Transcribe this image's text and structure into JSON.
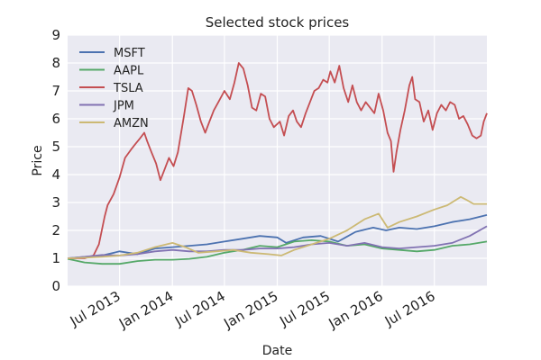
{
  "chart_data": {
    "type": "line",
    "title": "Selected stock prices",
    "xlabel": "Date",
    "ylabel": "Price",
    "ylim": [
      0,
      9
    ],
    "yticks": [
      0,
      1,
      2,
      3,
      4,
      5,
      6,
      7,
      8,
      9
    ],
    "xlim": [
      "2013-01-01",
      "2016-12-31"
    ],
    "xticks": [
      {
        "date": "2013-07-01",
        "label": "Jul 2013"
      },
      {
        "date": "2014-01-01",
        "label": "Jan 2014"
      },
      {
        "date": "2014-07-01",
        "label": "Jul 2014"
      },
      {
        "date": "2015-01-01",
        "label": "Jan 2015"
      },
      {
        "date": "2015-07-01",
        "label": "Jul 2015"
      },
      {
        "date": "2016-01-01",
        "label": "Jan 2016"
      },
      {
        "date": "2016-07-01",
        "label": "Jul 2016"
      }
    ],
    "grid": true,
    "legend_position": "top-left",
    "background": "#eaeaf2",
    "series": [
      {
        "name": "MSFT",
        "color": "#4c72b0",
        "points": [
          [
            "2013-01-01",
            1.0
          ],
          [
            "2013-03-01",
            1.05
          ],
          [
            "2013-05-01",
            1.1
          ],
          [
            "2013-07-01",
            1.25
          ],
          [
            "2013-09-01",
            1.15
          ],
          [
            "2013-11-01",
            1.35
          ],
          [
            "2014-01-01",
            1.4
          ],
          [
            "2014-03-01",
            1.45
          ],
          [
            "2014-05-01",
            1.5
          ],
          [
            "2014-07-01",
            1.6
          ],
          [
            "2014-09-01",
            1.7
          ],
          [
            "2014-11-01",
            1.8
          ],
          [
            "2015-01-01",
            1.75
          ],
          [
            "2015-02-01",
            1.55
          ],
          [
            "2015-04-01",
            1.75
          ],
          [
            "2015-06-01",
            1.8
          ],
          [
            "2015-08-01",
            1.6
          ],
          [
            "2015-10-01",
            1.95
          ],
          [
            "2015-12-01",
            2.1
          ],
          [
            "2016-01-15",
            2.0
          ],
          [
            "2016-03-01",
            2.1
          ],
          [
            "2016-05-01",
            2.05
          ],
          [
            "2016-07-01",
            2.15
          ],
          [
            "2016-09-01",
            2.3
          ],
          [
            "2016-11-01",
            2.4
          ],
          [
            "2016-12-31",
            2.55
          ]
        ]
      },
      {
        "name": "AAPL",
        "color": "#55a868",
        "points": [
          [
            "2013-01-01",
            0.98
          ],
          [
            "2013-03-01",
            0.85
          ],
          [
            "2013-05-01",
            0.8
          ],
          [
            "2013-07-01",
            0.8
          ],
          [
            "2013-09-01",
            0.9
          ],
          [
            "2013-11-01",
            0.95
          ],
          [
            "2014-01-01",
            0.95
          ],
          [
            "2014-03-01",
            0.98
          ],
          [
            "2014-05-01",
            1.05
          ],
          [
            "2014-07-01",
            1.2
          ],
          [
            "2014-09-01",
            1.3
          ],
          [
            "2014-11-01",
            1.45
          ],
          [
            "2015-01-01",
            1.4
          ],
          [
            "2015-03-01",
            1.6
          ],
          [
            "2015-05-01",
            1.65
          ],
          [
            "2015-07-01",
            1.6
          ],
          [
            "2015-09-01",
            1.45
          ],
          [
            "2015-11-01",
            1.5
          ],
          [
            "2016-01-01",
            1.35
          ],
          [
            "2016-03-01",
            1.3
          ],
          [
            "2016-05-01",
            1.25
          ],
          [
            "2016-07-01",
            1.3
          ],
          [
            "2016-09-01",
            1.45
          ],
          [
            "2016-11-01",
            1.5
          ],
          [
            "2016-12-31",
            1.6
          ]
        ]
      },
      {
        "name": "TSLA",
        "color": "#c44e52",
        "points": [
          [
            "2013-01-01",
            1.0
          ],
          [
            "2013-03-01",
            1.0
          ],
          [
            "2013-04-01",
            1.1
          ],
          [
            "2013-04-20",
            1.5
          ],
          [
            "2013-05-10",
            2.5
          ],
          [
            "2013-05-20",
            2.9
          ],
          [
            "2013-06-10",
            3.3
          ],
          [
            "2013-07-01",
            3.9
          ],
          [
            "2013-07-20",
            4.6
          ],
          [
            "2013-08-10",
            4.9
          ],
          [
            "2013-08-25",
            5.1
          ],
          [
            "2013-09-10",
            5.3
          ],
          [
            "2013-09-25",
            5.5
          ],
          [
            "2013-10-05",
            5.2
          ],
          [
            "2013-10-20",
            4.8
          ],
          [
            "2013-11-05",
            4.4
          ],
          [
            "2013-11-20",
            3.8
          ],
          [
            "2013-12-05",
            4.2
          ],
          [
            "2013-12-20",
            4.6
          ],
          [
            "2014-01-05",
            4.3
          ],
          [
            "2014-01-20",
            4.8
          ],
          [
            "2014-02-10",
            6.1
          ],
          [
            "2014-02-25",
            7.1
          ],
          [
            "2014-03-10",
            7.0
          ],
          [
            "2014-03-25",
            6.5
          ],
          [
            "2014-04-10",
            5.9
          ],
          [
            "2014-04-25",
            5.5
          ],
          [
            "2014-05-10",
            5.9
          ],
          [
            "2014-05-25",
            6.3
          ],
          [
            "2014-06-10",
            6.6
          ],
          [
            "2014-07-01",
            7.0
          ],
          [
            "2014-07-20",
            6.7
          ],
          [
            "2014-08-05",
            7.3
          ],
          [
            "2014-08-20",
            8.0
          ],
          [
            "2014-09-05",
            7.8
          ],
          [
            "2014-09-20",
            7.2
          ],
          [
            "2014-10-05",
            6.4
          ],
          [
            "2014-10-20",
            6.3
          ],
          [
            "2014-11-05",
            6.9
          ],
          [
            "2014-11-20",
            6.8
          ],
          [
            "2014-12-05",
            6.0
          ],
          [
            "2014-12-20",
            5.7
          ],
          [
            "2015-01-10",
            5.9
          ],
          [
            "2015-01-25",
            5.4
          ],
          [
            "2015-02-10",
            6.1
          ],
          [
            "2015-02-25",
            6.3
          ],
          [
            "2015-03-10",
            5.9
          ],
          [
            "2015-03-25",
            5.7
          ],
          [
            "2015-04-10",
            6.2
          ],
          [
            "2015-04-25",
            6.6
          ],
          [
            "2015-05-10",
            7.0
          ],
          [
            "2015-05-25",
            7.1
          ],
          [
            "2015-06-10",
            7.4
          ],
          [
            "2015-06-25",
            7.3
          ],
          [
            "2015-07-05",
            7.7
          ],
          [
            "2015-07-20",
            7.3
          ],
          [
            "2015-08-05",
            7.9
          ],
          [
            "2015-08-20",
            7.1
          ],
          [
            "2015-09-05",
            6.6
          ],
          [
            "2015-09-20",
            7.2
          ],
          [
            "2015-10-05",
            6.6
          ],
          [
            "2015-10-20",
            6.3
          ],
          [
            "2015-11-05",
            6.6
          ],
          [
            "2015-11-20",
            6.4
          ],
          [
            "2015-12-05",
            6.2
          ],
          [
            "2015-12-20",
            6.9
          ],
          [
            "2016-01-05",
            6.3
          ],
          [
            "2016-01-20",
            5.5
          ],
          [
            "2016-02-01",
            5.2
          ],
          [
            "2016-02-10",
            4.1
          ],
          [
            "2016-02-20",
            4.8
          ],
          [
            "2016-03-05",
            5.6
          ],
          [
            "2016-03-20",
            6.3
          ],
          [
            "2016-04-05",
            7.2
          ],
          [
            "2016-04-15",
            7.5
          ],
          [
            "2016-04-25",
            6.7
          ],
          [
            "2016-05-10",
            6.6
          ],
          [
            "2016-05-25",
            5.9
          ],
          [
            "2016-06-10",
            6.3
          ],
          [
            "2016-06-25",
            5.6
          ],
          [
            "2016-07-10",
            6.2
          ],
          [
            "2016-07-25",
            6.5
          ],
          [
            "2016-08-10",
            6.3
          ],
          [
            "2016-08-25",
            6.6
          ],
          [
            "2016-09-10",
            6.5
          ],
          [
            "2016-09-25",
            6.0
          ],
          [
            "2016-10-10",
            6.1
          ],
          [
            "2016-10-25",
            5.8
          ],
          [
            "2016-11-10",
            5.4
          ],
          [
            "2016-11-25",
            5.3
          ],
          [
            "2016-12-10",
            5.4
          ],
          [
            "2016-12-20",
            5.9
          ],
          [
            "2016-12-31",
            6.2
          ]
        ]
      },
      {
        "name": "JPM",
        "color": "#8172b2",
        "points": [
          [
            "2013-01-01",
            1.0
          ],
          [
            "2013-03-01",
            1.05
          ],
          [
            "2013-05-01",
            1.12
          ],
          [
            "2013-07-01",
            1.1
          ],
          [
            "2013-09-01",
            1.15
          ],
          [
            "2013-11-01",
            1.25
          ],
          [
            "2014-01-01",
            1.3
          ],
          [
            "2014-03-01",
            1.25
          ],
          [
            "2014-05-01",
            1.25
          ],
          [
            "2014-07-01",
            1.3
          ],
          [
            "2014-09-01",
            1.3
          ],
          [
            "2014-11-01",
            1.35
          ],
          [
            "2015-01-01",
            1.35
          ],
          [
            "2015-03-01",
            1.4
          ],
          [
            "2015-05-01",
            1.5
          ],
          [
            "2015-07-01",
            1.55
          ],
          [
            "2015-09-01",
            1.45
          ],
          [
            "2015-11-01",
            1.55
          ],
          [
            "2016-01-01",
            1.4
          ],
          [
            "2016-03-01",
            1.35
          ],
          [
            "2016-05-01",
            1.4
          ],
          [
            "2016-07-01",
            1.45
          ],
          [
            "2016-09-01",
            1.55
          ],
          [
            "2016-11-01",
            1.8
          ],
          [
            "2016-12-31",
            2.15
          ]
        ]
      },
      {
        "name": "AMZN",
        "color": "#ccb974",
        "points": [
          [
            "2013-01-01",
            1.0
          ],
          [
            "2013-03-01",
            1.02
          ],
          [
            "2013-05-01",
            1.05
          ],
          [
            "2013-07-01",
            1.1
          ],
          [
            "2013-09-01",
            1.2
          ],
          [
            "2013-11-01",
            1.4
          ],
          [
            "2014-01-01",
            1.55
          ],
          [
            "2014-02-15",
            1.4
          ],
          [
            "2014-04-01",
            1.2
          ],
          [
            "2014-06-01",
            1.25
          ],
          [
            "2014-08-01",
            1.3
          ],
          [
            "2014-10-01",
            1.2
          ],
          [
            "2014-12-01",
            1.15
          ],
          [
            "2015-01-15",
            1.1
          ],
          [
            "2015-03-01",
            1.3
          ],
          [
            "2015-05-01",
            1.5
          ],
          [
            "2015-07-01",
            1.7
          ],
          [
            "2015-09-01",
            2.0
          ],
          [
            "2015-11-01",
            2.4
          ],
          [
            "2015-12-20",
            2.6
          ],
          [
            "2016-01-20",
            2.1
          ],
          [
            "2016-03-01",
            2.3
          ],
          [
            "2016-05-01",
            2.5
          ],
          [
            "2016-07-01",
            2.75
          ],
          [
            "2016-08-15",
            2.9
          ],
          [
            "2016-10-01",
            3.2
          ],
          [
            "2016-10-20",
            3.1
          ],
          [
            "2016-11-15",
            2.95
          ],
          [
            "2016-12-31",
            2.95
          ]
        ]
      }
    ]
  }
}
